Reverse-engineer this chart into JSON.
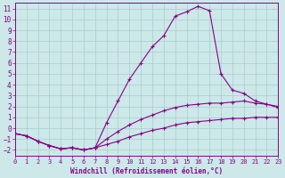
{
  "xlabel": "Windchill (Refroidissement éolien,°C)",
  "background_color": "#cce8e8",
  "grid_color": "#aacccc",
  "line_color": "#880088",
  "xlim": [
    0,
    23
  ],
  "ylim": [
    -2.5,
    11.5
  ],
  "xticks": [
    0,
    1,
    2,
    3,
    4,
    5,
    6,
    7,
    8,
    9,
    10,
    11,
    12,
    13,
    14,
    15,
    16,
    17,
    18,
    19,
    20,
    21,
    22,
    23
  ],
  "yticks": [
    -2,
    -1,
    0,
    1,
    2,
    3,
    4,
    5,
    6,
    7,
    8,
    9,
    10,
    11
  ],
  "series": [
    {
      "x": [
        0,
        1,
        2,
        3,
        4,
        5,
        6,
        7,
        8,
        9,
        10,
        11,
        12,
        13,
        14,
        15,
        16,
        17,
        18,
        19,
        20,
        21,
        22,
        23
      ],
      "y": [
        -0.5,
        -0.7,
        -1.2,
        -1.6,
        -1.9,
        -1.8,
        -2.0,
        -1.8,
        -1.5,
        -1.2,
        -0.8,
        -0.5,
        -0.2,
        0.0,
        0.3,
        0.5,
        0.6,
        0.7,
        0.8,
        0.9,
        0.9,
        1.0,
        1.0,
        1.0
      ]
    },
    {
      "x": [
        0,
        1,
        2,
        3,
        4,
        5,
        6,
        7,
        8,
        9,
        10,
        11,
        12,
        13,
        14,
        15,
        16,
        17,
        18,
        19,
        20,
        21,
        22,
        23
      ],
      "y": [
        -0.5,
        -0.7,
        -1.2,
        -1.6,
        -1.9,
        -1.8,
        -2.0,
        -1.8,
        -1.0,
        -0.3,
        0.3,
        0.8,
        1.2,
        1.6,
        1.9,
        2.1,
        2.2,
        2.3,
        2.3,
        2.4,
        2.5,
        2.3,
        2.2,
        2.0
      ]
    },
    {
      "x": [
        0,
        1,
        2,
        3,
        4,
        5,
        6,
        7,
        8,
        9,
        10,
        11,
        12,
        13,
        14,
        15,
        16,
        17,
        18,
        19,
        20,
        21,
        22,
        23
      ],
      "y": [
        -0.5,
        -0.7,
        -1.2,
        -1.6,
        -1.9,
        -1.8,
        -2.0,
        -1.8,
        0.5,
        2.5,
        4.5,
        6.0,
        7.5,
        8.5,
        10.3,
        10.7,
        11.2,
        10.8,
        5.0,
        3.5,
        3.2,
        2.5,
        2.2,
        1.9
      ]
    }
  ]
}
